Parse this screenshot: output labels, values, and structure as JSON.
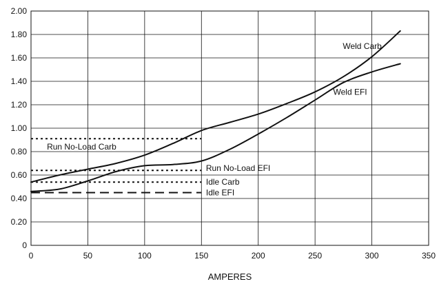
{
  "chart_data": {
    "type": "line",
    "title": "",
    "xlabel": "AMPERES",
    "ylabel": "",
    "xlim": [
      0,
      350
    ],
    "ylim": [
      0,
      2.0
    ],
    "grid": true,
    "x_ticks": [
      0,
      50,
      100,
      150,
      200,
      250,
      300,
      350
    ],
    "x_tick_labels": [
      "0",
      "50",
      "100",
      "150",
      "200",
      "250",
      "300",
      "350"
    ],
    "y_ticks": [
      0,
      0.2,
      0.4,
      0.6,
      0.8,
      1.0,
      1.2,
      1.4,
      1.6,
      1.8,
      2.0
    ],
    "y_tick_labels": [
      "0",
      "0.20",
      "0.40",
      "0.60",
      "0.80",
      "1.00",
      "1.20",
      "1.40",
      "1.60",
      "1.80",
      "2.00"
    ],
    "series": [
      {
        "name": "Weld Carb",
        "style": "solid",
        "x": [
          0,
          25,
          50,
          75,
          100,
          125,
          150,
          175,
          200,
          225,
          250,
          275,
          300,
          325
        ],
        "y": [
          0.54,
          0.6,
          0.65,
          0.7,
          0.77,
          0.87,
          0.98,
          1.05,
          1.12,
          1.21,
          1.31,
          1.44,
          1.61,
          1.83
        ]
      },
      {
        "name": "Weld EFI",
        "style": "solid",
        "x": [
          0,
          25,
          50,
          75,
          100,
          125,
          150,
          175,
          200,
          225,
          250,
          275,
          300,
          325
        ],
        "y": [
          0.46,
          0.48,
          0.55,
          0.63,
          0.68,
          0.69,
          0.72,
          0.82,
          0.95,
          1.09,
          1.24,
          1.39,
          1.48,
          1.55
        ]
      },
      {
        "name": "Run No-Load Carb",
        "style": "dotted",
        "x": [
          0,
          150
        ],
        "y": [
          0.91,
          0.91
        ]
      },
      {
        "name": "Run No-Load EFI",
        "style": "dotted",
        "x": [
          0,
          150
        ],
        "y": [
          0.64,
          0.64
        ]
      },
      {
        "name": "Idle Carb",
        "style": "dotted",
        "x": [
          0,
          150
        ],
        "y": [
          0.54,
          0.54
        ]
      },
      {
        "name": "Idle EFI",
        "style": "dashed",
        "x": [
          0,
          150
        ],
        "y": [
          0.45,
          0.45
        ]
      }
    ]
  },
  "colors": {
    "ink": "#111111",
    "background": "#ffffff"
  }
}
